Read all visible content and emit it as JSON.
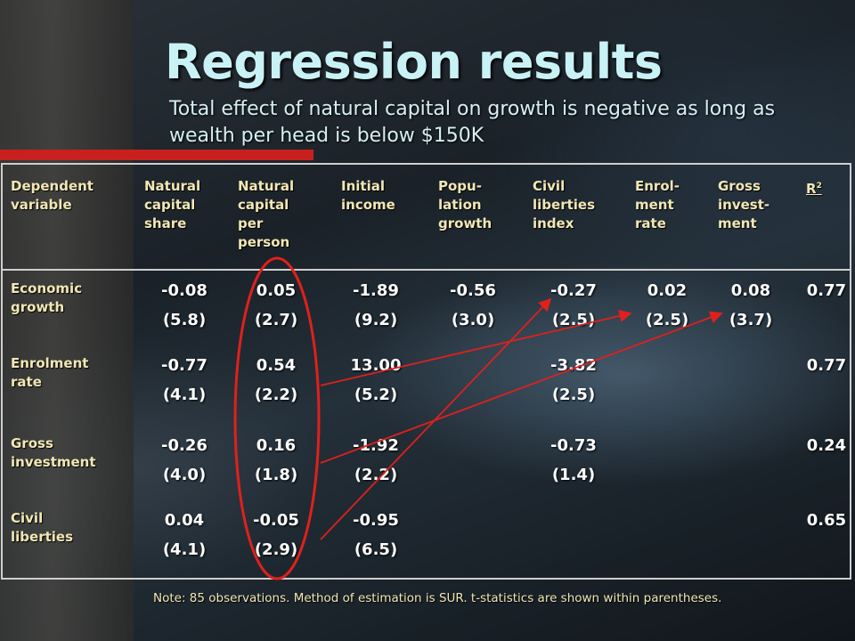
{
  "slide": {
    "title": "Regression results",
    "subtitle": "Total effect of natural capital on growth is negative as long as wealth per head is below $150K",
    "note": "Note: 85 observations. Method of estimation is SUR. t-statistics are shown within parentheses."
  },
  "table": {
    "header": {
      "dependent": "Dependent\nvariable",
      "nat_share": "Natural\ncapital\nshare",
      "nat_person": "Natural\ncapital\nper\nperson",
      "init_income": "Initial\nincome",
      "pop_growth": "Popu-\nlation\ngrowth",
      "civil_index": "Civil\nliberties\nindex",
      "enrol_rate": "Enrol-\nment\nrate",
      "gross_invest": "Gross\ninvest-\nment",
      "r2_base": "R",
      "r2_sup": "2"
    },
    "rows": [
      {
        "label": "Economic\ngrowth",
        "cells": {
          "nat_share": {
            "coef": "-0.08",
            "t": "(5.8)"
          },
          "nat_person": {
            "coef": "0.05",
            "t": "(2.7)"
          },
          "init_income": {
            "coef": "-1.89",
            "t": "(9.2)"
          },
          "pop_growth": {
            "coef": "-0.56",
            "t": "(3.0)"
          },
          "civil_index": {
            "coef": "-0.27",
            "t": "(2.5)"
          },
          "enrol_rate": {
            "coef": "0.02",
            "t": "(2.5)"
          },
          "gross_invest": {
            "coef": "0.08",
            "t": "(3.7)"
          }
        },
        "r2": "0.77"
      },
      {
        "label": "Enrolment\nrate",
        "cells": {
          "nat_share": {
            "coef": "-0.77",
            "t": "(4.1)"
          },
          "nat_person": {
            "coef": "0.54",
            "t": "(2.2)"
          },
          "init_income": {
            "coef": "13.00",
            "t": "(5.2)"
          },
          "civil_index": {
            "coef": "-3.82",
            "t": "(2.5)"
          }
        },
        "r2": "0.77"
      },
      {
        "label": "Gross\ninvestment",
        "cells": {
          "nat_share": {
            "coef": "-0.26",
            "t": "(4.0)"
          },
          "nat_person": {
            "coef": "0.16",
            "t": "(1.8)"
          },
          "init_income": {
            "coef": "-1.92",
            "t": "(2.2)"
          },
          "civil_index": {
            "coef": "-0.73",
            "t": "(1.4)"
          }
        },
        "r2": "0.24"
      },
      {
        "label": "Civil\nliberties",
        "cells": {
          "nat_share": {
            "coef": "0.04",
            "t": "(4.1)"
          },
          "nat_person": {
            "coef": "-0.05",
            "t": "(2.9)"
          },
          "init_income": {
            "coef": "-0.95",
            "t": "(6.5)"
          }
        },
        "r2": "0.65"
      }
    ]
  },
  "colors": {
    "title": "#c9f2f6",
    "header_text": "#f2e7b4",
    "cell_text": "#ffffff",
    "accent_bar": "#c8201e",
    "circle": "#e0201c",
    "arrow": "#e0201c"
  }
}
